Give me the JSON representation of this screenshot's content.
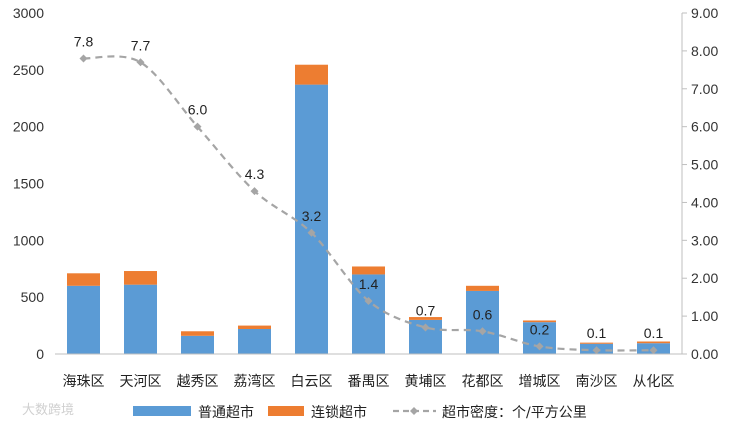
{
  "chart_data": {
    "type": "bar",
    "stacked": true,
    "categories": [
      "海珠区",
      "天河区",
      "越秀区",
      "荔湾区",
      "白云区",
      "番禺区",
      "黄埔区",
      "花都区",
      "增城区",
      "南沙区",
      "从化区"
    ],
    "series": [
      {
        "name": "普通超市",
        "kind": "bar",
        "axis": "left",
        "color": "#5B9BD5",
        "values": [
          600,
          610,
          160,
          220,
          2370,
          700,
          300,
          555,
          280,
          90,
          95
        ]
      },
      {
        "name": "连锁超市",
        "kind": "bar",
        "axis": "left",
        "color": "#ED7D31",
        "values": [
          110,
          120,
          40,
          30,
          175,
          70,
          25,
          45,
          15,
          10,
          15
        ]
      },
      {
        "name": "超市密度：个/平方公里",
        "kind": "line",
        "axis": "right",
        "color": "#A5A5A5",
        "style": "dashed",
        "values": [
          7.8,
          7.7,
          6.0,
          4.3,
          3.2,
          1.4,
          0.7,
          0.6,
          0.2,
          0.1,
          0.1
        ],
        "labels": [
          "7.8",
          "7.7",
          "6.0",
          "4.3",
          "3.2",
          "1.4",
          "0.7",
          "0.6",
          "0.2",
          "0.1",
          "0.1"
        ]
      }
    ],
    "left_axis": {
      "ylim": [
        0,
        3000
      ],
      "ticks": [
        "0",
        "500",
        "1000",
        "1500",
        "2000",
        "2500",
        "3000"
      ]
    },
    "right_axis": {
      "ylim": [
        0,
        9
      ],
      "ticks": [
        "0.00",
        "1.00",
        "2.00",
        "3.00",
        "4.00",
        "5.00",
        "6.00",
        "7.00",
        "8.00",
        "9.00"
      ]
    },
    "grid": false,
    "legend_position": "bottom",
    "title": "",
    "xlabel": "",
    "ylabel": ""
  },
  "watermark": "大数跨境"
}
